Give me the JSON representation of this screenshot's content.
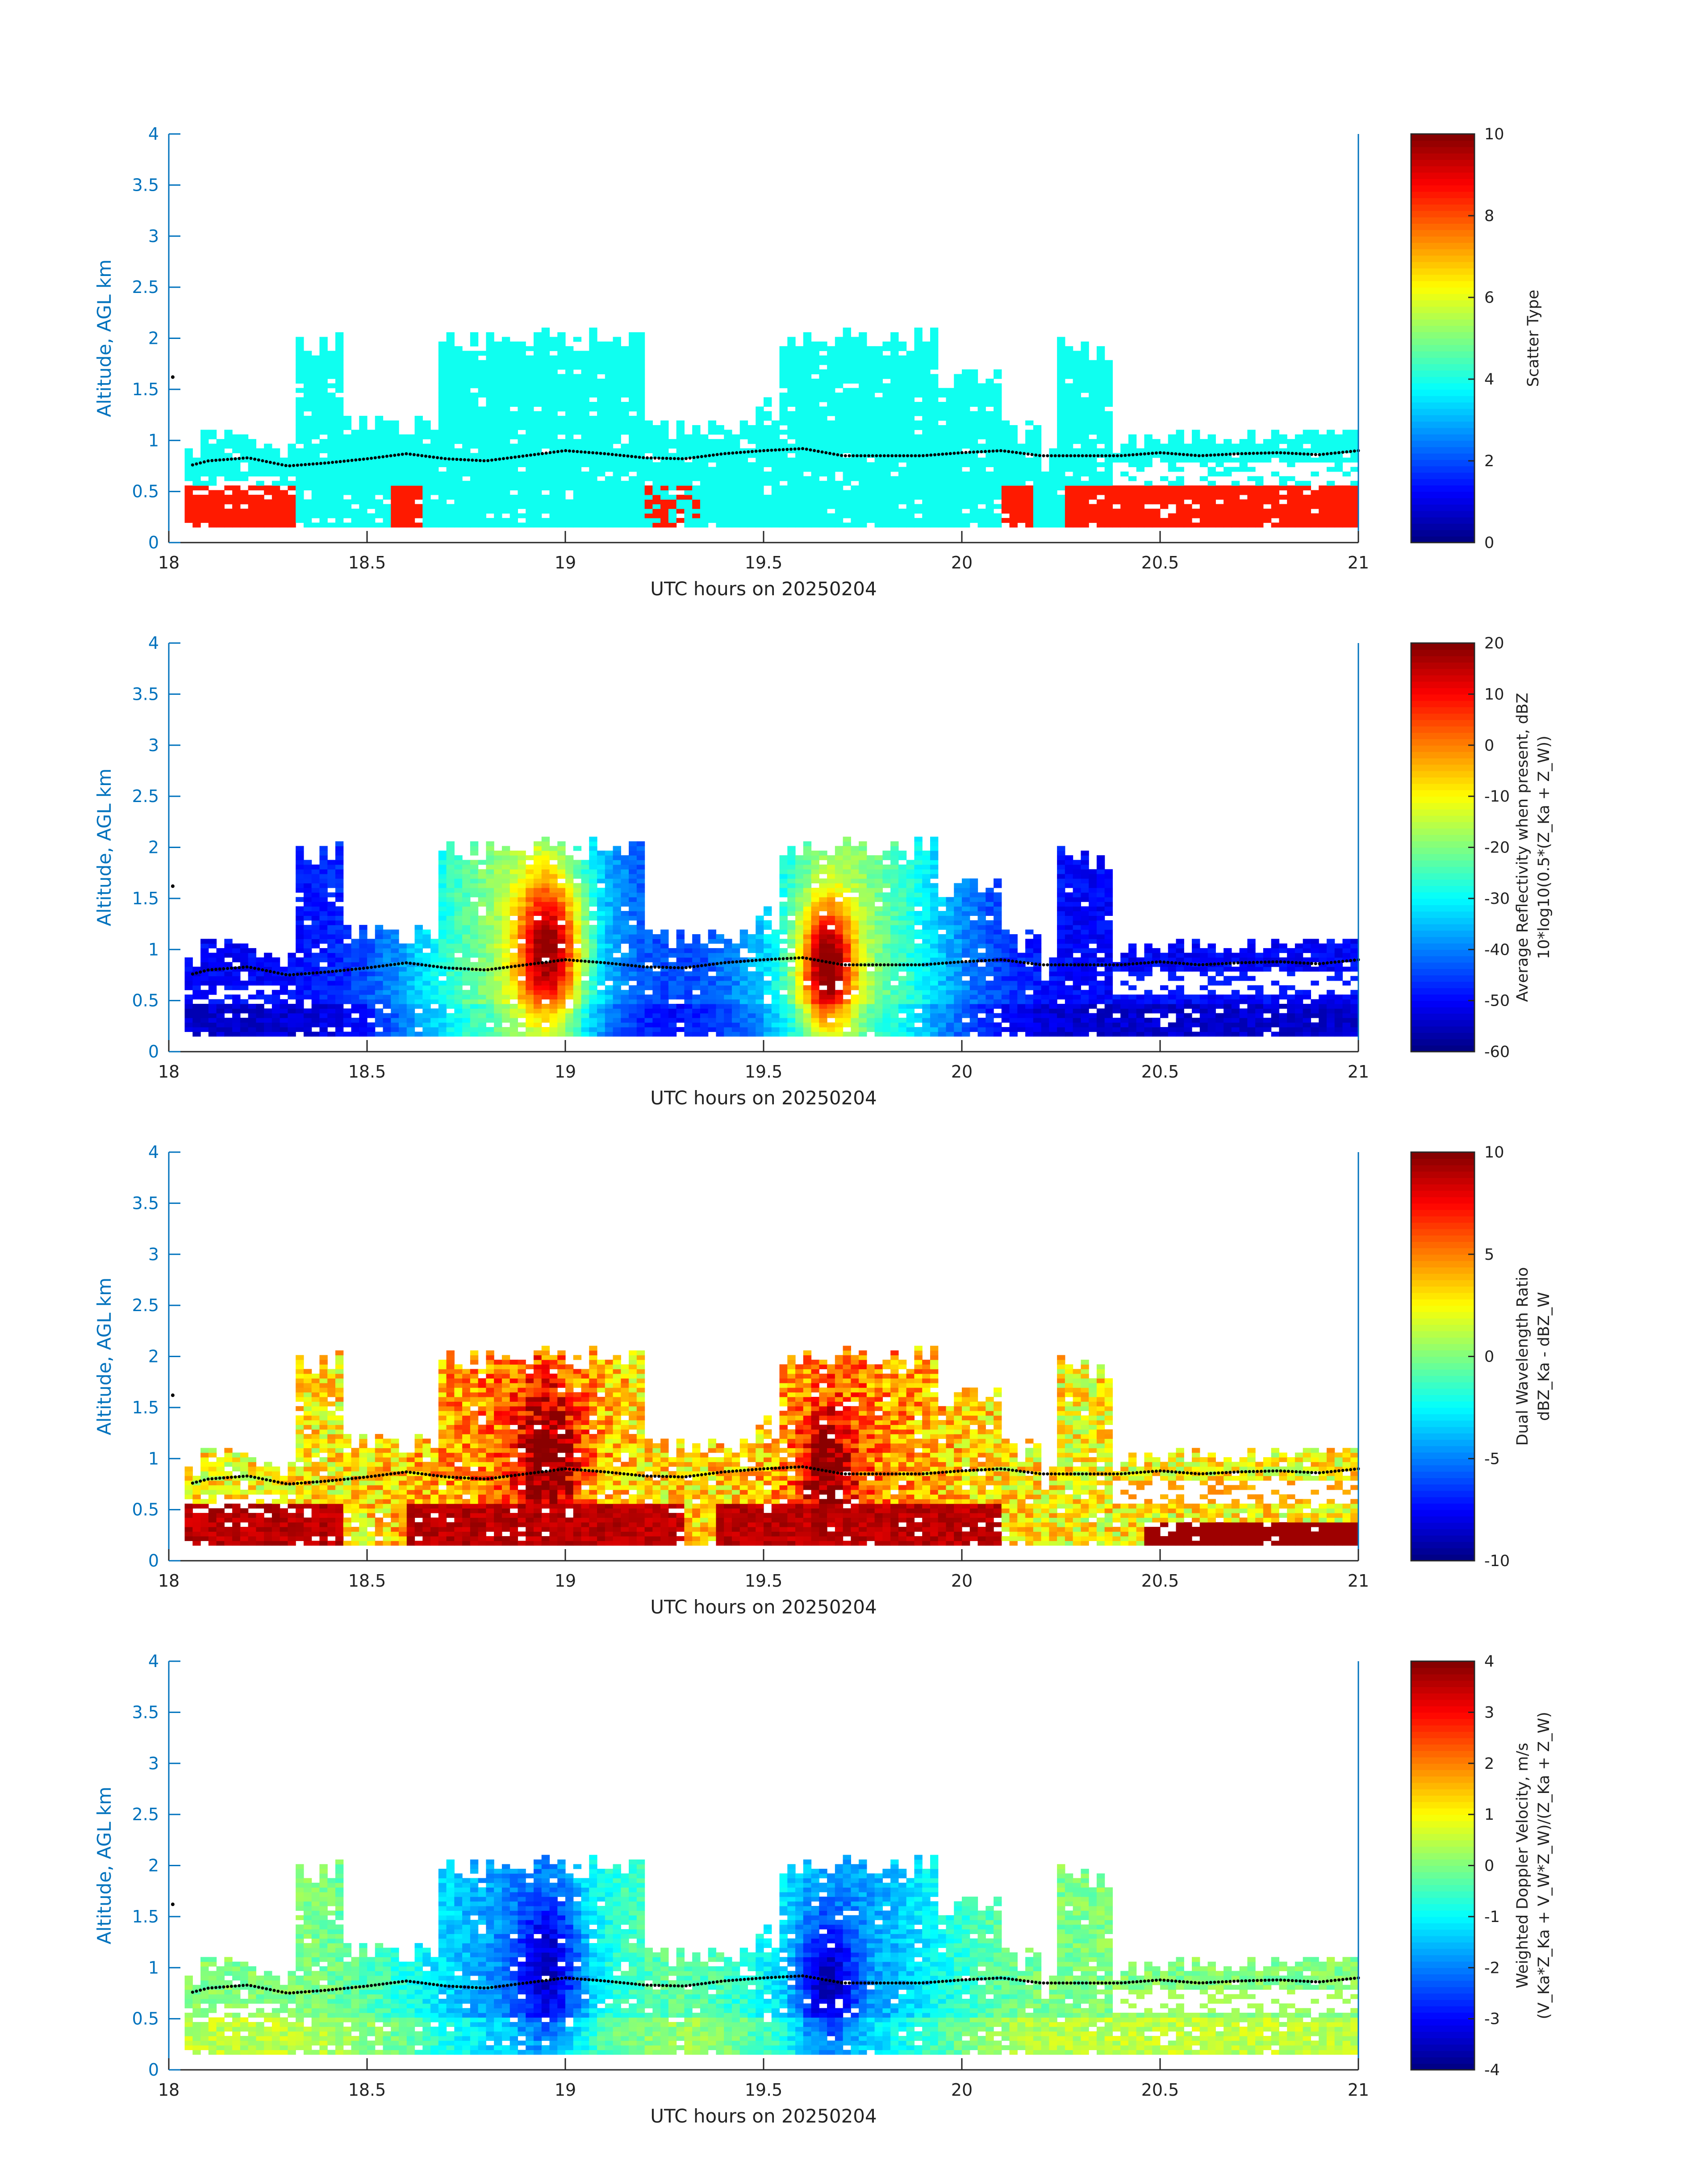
{
  "chart_data": [
    {
      "type": "heatmap",
      "xlabel": "UTC hours on 20250204",
      "ylabel": "Altitude, AGL km",
      "xlim": [
        18,
        21
      ],
      "ylim": [
        0,
        4
      ],
      "xticks": [
        "18",
        "18.5",
        "19",
        "19.5",
        "20",
        "20.5",
        "21"
      ],
      "yticks": [
        "0",
        "0.5",
        "1",
        "1.5",
        "2",
        "2.5",
        "3",
        "3.5",
        "4"
      ],
      "colorbar": {
        "label_lines": [
          "Scatter Type"
        ],
        "range": [
          0,
          10
        ],
        "ticks": [
          "0",
          "2",
          "4",
          "6",
          "8",
          "10"
        ]
      }
    },
    {
      "type": "heatmap",
      "xlabel": "UTC hours on 20250204",
      "ylabel": "Altitude, AGL km",
      "xlim": [
        18,
        21
      ],
      "ylim": [
        0,
        4
      ],
      "xticks": [
        "18",
        "18.5",
        "19",
        "19.5",
        "20",
        "20.5",
        "21"
      ],
      "yticks": [
        "0",
        "0.5",
        "1",
        "1.5",
        "2",
        "2.5",
        "3",
        "3.5",
        "4"
      ],
      "colorbar": {
        "label_lines": [
          "Average Reflectivity when present, dBZ",
          "10*log10(0.5*(Z_Ka + Z_W))"
        ],
        "range": [
          -60,
          20
        ],
        "ticks": [
          "-60",
          "-50",
          "-40",
          "-30",
          "-20",
          "-10",
          "0",
          "10",
          "20"
        ]
      }
    },
    {
      "type": "heatmap",
      "xlabel": "UTC hours on 20250204",
      "ylabel": "Altitude, AGL km",
      "xlim": [
        18,
        21
      ],
      "ylim": [
        0,
        4
      ],
      "xticks": [
        "18",
        "18.5",
        "19",
        "19.5",
        "20",
        "20.5",
        "21"
      ],
      "yticks": [
        "0",
        "0.5",
        "1",
        "1.5",
        "2",
        "2.5",
        "3",
        "3.5",
        "4"
      ],
      "colorbar": {
        "label_lines": [
          "Dual Wavelength Ratio",
          "dBZ_Ka - dBZ_W"
        ],
        "range": [
          -10,
          10
        ],
        "ticks": [
          "-10",
          "-5",
          "0",
          "5",
          "10"
        ]
      }
    },
    {
      "type": "heatmap",
      "xlabel": "UTC hours on 20250204",
      "ylabel": "Altitude, AGL km",
      "xlim": [
        18,
        21
      ],
      "ylim": [
        0,
        4
      ],
      "xticks": [
        "18",
        "18.5",
        "19",
        "19.5",
        "20",
        "20.5",
        "21"
      ],
      "yticks": [
        "0",
        "0.5",
        "1",
        "1.5",
        "2",
        "2.5",
        "3",
        "3.5",
        "4"
      ],
      "colorbar": {
        "label_lines": [
          "Weighted Doppler Velocity, m/s",
          "(V_Ka*Z_Ka + V_W*Z_W)/(Z_Ka + Z_W)"
        ],
        "range": [
          -4,
          4
        ],
        "ticks": [
          "-4",
          "-3",
          "-2",
          "-1",
          "0",
          "1",
          "2",
          "3",
          "4"
        ]
      }
    }
  ],
  "shared_fields": {
    "cloud_base_km_points": [
      [
        18.0,
        1.62
      ],
      [
        18.05,
        0.75
      ],
      [
        18.1,
        0.8
      ],
      [
        18.2,
        0.83
      ],
      [
        18.3,
        0.75
      ],
      [
        18.4,
        0.78
      ],
      [
        18.5,
        0.82
      ],
      [
        18.6,
        0.87
      ],
      [
        18.7,
        0.82
      ],
      [
        18.8,
        0.8
      ],
      [
        18.9,
        0.85
      ],
      [
        19.0,
        0.9
      ],
      [
        19.1,
        0.87
      ],
      [
        19.2,
        0.83
      ],
      [
        19.3,
        0.82
      ],
      [
        19.4,
        0.87
      ],
      [
        19.5,
        0.9
      ],
      [
        19.6,
        0.92
      ],
      [
        19.7,
        0.85
      ],
      [
        19.8,
        0.85
      ],
      [
        19.9,
        0.85
      ],
      [
        20.0,
        0.88
      ],
      [
        20.1,
        0.9
      ],
      [
        20.2,
        0.85
      ],
      [
        20.3,
        0.85
      ],
      [
        20.4,
        0.85
      ],
      [
        20.5,
        0.88
      ],
      [
        20.6,
        0.85
      ],
      [
        20.7,
        0.87
      ],
      [
        20.8,
        0.88
      ],
      [
        20.9,
        0.86
      ],
      [
        21.0,
        0.9
      ]
    ]
  }
}
